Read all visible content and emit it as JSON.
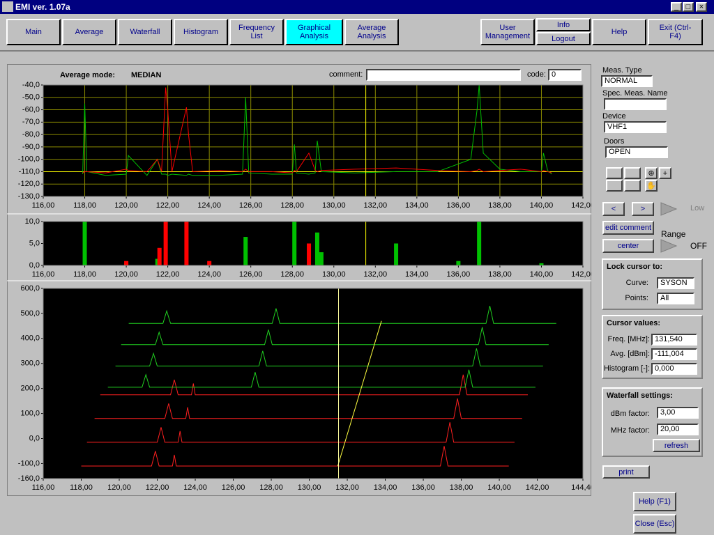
{
  "window": {
    "title": "EMI ver. 1.07a"
  },
  "menu": [
    "Main",
    "Average",
    "Waterfall",
    "Histogram",
    "Frequency List",
    "Graphical Analysis",
    "Average Analysis",
    "User Management",
    "Info",
    "Logout",
    "Help",
    "Exit (Ctrl-F4)"
  ],
  "header": {
    "mode_label": "Average mode:",
    "mode": "MEDIAN",
    "comment_label": "comment:",
    "code_label": "code:",
    "code": "0"
  },
  "side": {
    "meas_type_label": "Meas. Type",
    "meas_type": "NORMAL",
    "spec_name_label": "Spec. Meas. Name",
    "device_label": "Device",
    "device": "VHF1",
    "doors_label": "Doors",
    "doors": "OPEN",
    "prev": "<",
    "next": ">",
    "low": "Low",
    "edit_comment": "edit comment",
    "range": "Range",
    "center": "center",
    "off": "OFF",
    "lock": {
      "title": "Lock cursor to:",
      "curve_label": "Curve:",
      "curve": "SYSON",
      "points_label": "Points:",
      "points": "All"
    },
    "cursor": {
      "title": "Cursor values:",
      "freq_label": "Freq. [MHz]:",
      "freq": "131,540",
      "avg_label": "Avg. [dBm]:",
      "avg": "-111,004",
      "hist_label": "Histogram [-]:",
      "hist": "0,000"
    },
    "waterfall": {
      "title": "Waterfall settings:",
      "dbm_label": "dBm factor:",
      "dbm": "3,00",
      "mhz_label": "MHz factor:",
      "mhz": "20,00",
      "refresh": "refresh"
    },
    "print": "print",
    "help": "Help (F1)",
    "close": "Close (Esc)"
  },
  "chart_data": [
    {
      "type": "line",
      "background": "#000000",
      "grid": true,
      "grid_color": "#8a8a00",
      "xlim": [
        116,
        142
      ],
      "ylim": [
        -130,
        -40
      ],
      "xticks": [
        {
          "value": 116,
          "label": "116,00"
        },
        {
          "value": 118,
          "label": "118,00"
        },
        {
          "value": 120,
          "label": "120,00"
        },
        {
          "value": 122,
          "label": "122,00"
        },
        {
          "value": 124,
          "label": "124,00"
        },
        {
          "value": 126,
          "label": "126,00"
        },
        {
          "value": 128,
          "label": "128,00"
        },
        {
          "value": 130,
          "label": "130,00"
        },
        {
          "value": 132,
          "label": "132,00"
        },
        {
          "value": 134,
          "label": "134,00"
        },
        {
          "value": 136,
          "label": "136,00"
        },
        {
          "value": 138,
          "label": "138,00"
        },
        {
          "value": 140,
          "label": "140,00"
        },
        {
          "value": 142,
          "label": "142,00"
        }
      ],
      "yticks": [
        {
          "value": -130,
          "label": "-130,0"
        },
        {
          "value": -120,
          "label": "-120,0"
        },
        {
          "value": -110,
          "label": "-110,0"
        },
        {
          "value": -100,
          "label": "-100,0"
        },
        {
          "value": -90,
          "label": "-90,0"
        },
        {
          "value": -80,
          "label": "-80,0"
        },
        {
          "value": -70,
          "label": "-70,0"
        },
        {
          "value": -60,
          "label": "-60,0"
        },
        {
          "value": -50,
          "label": "-50,0"
        },
        {
          "value": -40,
          "label": "-40,0"
        }
      ],
      "reference_lines": [
        -110
      ],
      "reference_color": "#ffff00",
      "cursor": 131.54,
      "cursor_color": "#ffff00",
      "x": [
        117.9,
        118.0,
        118.1,
        119.0,
        120.0,
        120.1,
        121.0,
        121.5,
        121.7,
        121.9,
        122.0,
        122.2,
        122.9,
        123.0,
        123.2,
        124.5,
        125.6,
        125.75,
        125.9,
        127.0,
        128.0,
        128.1,
        128.2,
        128.8,
        129.1,
        129.2,
        129.4,
        131.0,
        133.0,
        135.0,
        136.6,
        136.9,
        137.0,
        137.2,
        138.0,
        139.0,
        140.0,
        140.1,
        140.3,
        140.5
      ],
      "series": [
        {
          "color": "#00c000",
          "values": [
            -112,
            -55,
            -110,
            -113,
            -112,
            -97,
            -113,
            -100,
            -112,
            -112,
            -113,
            -112,
            -113,
            -112,
            -113,
            -113,
            -112,
            -50,
            -111,
            -112,
            -112,
            -88,
            -111,
            -112,
            -111,
            -85,
            -110,
            -111,
            -110,
            -110,
            -100,
            -60,
            -40,
            -95,
            -108,
            -110,
            -110,
            -95,
            -109,
            -112
          ]
        },
        {
          "color": "#ff0000",
          "values": [
            -111,
            -110,
            -110,
            -111,
            -108,
            -109,
            -110,
            -100,
            -110,
            -42,
            -60,
            -110,
            -58,
            -80,
            -110,
            -109,
            -110,
            -108,
            -110,
            -110,
            -111,
            -109,
            -110,
            -95,
            -109,
            -110,
            -109,
            -108,
            -107,
            -109,
            -110,
            -109,
            -108,
            -110,
            -109,
            -108,
            -110,
            -109,
            -110,
            -111
          ]
        }
      ]
    },
    {
      "type": "bar",
      "background": "#000000",
      "grid": false,
      "xlim": [
        116,
        142
      ],
      "ylim": [
        0,
        10
      ],
      "xticks": [
        {
          "value": 116,
          "label": "116,00"
        },
        {
          "value": 118,
          "label": "118,00"
        },
        {
          "value": 120,
          "label": "120,00"
        },
        {
          "value": 122,
          "label": "122,00"
        },
        {
          "value": 124,
          "label": "124,00"
        },
        {
          "value": 126,
          "label": "126,00"
        },
        {
          "value": 128,
          "label": "128,00"
        },
        {
          "value": 130,
          "label": "130,00"
        },
        {
          "value": 132,
          "label": "132,00"
        },
        {
          "value": 134,
          "label": "134,00"
        },
        {
          "value": 136,
          "label": "136,00"
        },
        {
          "value": 138,
          "label": "138,00"
        },
        {
          "value": 140,
          "label": "140,00"
        },
        {
          "value": 142,
          "label": "142,00"
        }
      ],
      "yticks": [
        {
          "value": 0,
          "label": "0,0"
        },
        {
          "value": 5,
          "label": "5,0"
        },
        {
          "value": 10,
          "label": "10,0"
        }
      ],
      "cursor": 131.54,
      "cursor_color": "#ffff00",
      "series": [
        {
          "color": "#00c000",
          "x": [
            118.0,
            120.0,
            121.5,
            125.75,
            128.1,
            129.2,
            129.4,
            133.0,
            136.0,
            137.0,
            140.0
          ],
          "values": [
            10,
            0.5,
            1.5,
            6.5,
            10,
            7.5,
            3,
            5,
            1,
            10,
            0.5
          ]
        },
        {
          "color": "#ff0000",
          "x": [
            120.0,
            121.6,
            121.9,
            122.9,
            124.0,
            128.8
          ],
          "values": [
            1,
            4,
            10,
            10,
            1,
            5
          ]
        }
      ]
    },
    {
      "type": "line",
      "background": "#000000",
      "grid": false,
      "xlim": [
        116,
        144.4
      ],
      "ylim": [
        -160,
        600
      ],
      "xticks": [
        {
          "value": 116,
          "label": "116,00"
        },
        {
          "value": 118,
          "label": "118,00"
        },
        {
          "value": 120,
          "label": "120,00"
        },
        {
          "value": 122,
          "label": "122,00"
        },
        {
          "value": 124,
          "label": "124,00"
        },
        {
          "value": 126,
          "label": "126,00"
        },
        {
          "value": 128,
          "label": "128,00"
        },
        {
          "value": 130,
          "label": "130,00"
        },
        {
          "value": 132,
          "label": "132,00"
        },
        {
          "value": 134,
          "label": "134,00"
        },
        {
          "value": 136,
          "label": "136,00"
        },
        {
          "value": 138,
          "label": "138,00"
        },
        {
          "value": 140,
          "label": "140,00"
        },
        {
          "value": 142,
          "label": "142,00"
        },
        {
          "value": 144.4,
          "label": "144,40"
        }
      ],
      "yticks": [
        {
          "value": -160,
          "label": "-160,0"
        },
        {
          "value": -100,
          "label": "-100,0"
        },
        {
          "value": 0,
          "label": "0,0"
        },
        {
          "value": 100,
          "label": "100,0"
        },
        {
          "value": 200,
          "label": "200,0"
        },
        {
          "value": 300,
          "label": "300,0"
        },
        {
          "value": 400,
          "label": "400,0"
        },
        {
          "value": 500,
          "label": "500,0"
        },
        {
          "value": 600,
          "label": "600,0"
        }
      ],
      "cursor": 131.54,
      "cursor_color": "#ffffa0",
      "series": [
        {
          "color": "#ff2020",
          "x": [
            118,
            121.7,
            121.9,
            122.1,
            122.8,
            122.9,
            123,
            136.9,
            137.1,
            137.3,
            140.5
          ],
          "values": [
            -110,
            -110,
            -50,
            -110,
            -110,
            -65,
            -110,
            -110,
            -30,
            -110,
            -110
          ]
        },
        {
          "color": "#ff2020",
          "x": [
            118.3,
            122,
            122.2,
            122.4,
            123.1,
            123.2,
            123.3,
            137.2,
            137.4,
            137.6,
            140.8
          ],
          "values": [
            -15,
            -15,
            45,
            -15,
            -15,
            30,
            -15,
            -15,
            65,
            -15,
            -15
          ]
        },
        {
          "color": "#ff2020",
          "x": [
            118.7,
            122.4,
            122.6,
            122.8,
            123.5,
            123.6,
            123.7,
            137.6,
            137.8,
            138,
            141.2
          ],
          "values": [
            80,
            80,
            140,
            80,
            80,
            125,
            80,
            80,
            160,
            80,
            80
          ]
        },
        {
          "color": "#ff2020",
          "x": [
            119,
            122.7,
            122.9,
            123.1,
            123.8,
            123.9,
            124,
            137.9,
            138.1,
            138.3,
            141.5
          ],
          "values": [
            175,
            175,
            235,
            175,
            175,
            220,
            175,
            175,
            255,
            175,
            175
          ]
        },
        {
          "color": "#20d020",
          "x": [
            119.4,
            121.2,
            121.4,
            121.6,
            126.95,
            127.15,
            127.35,
            138.2,
            138.4,
            138.6,
            141.9
          ],
          "values": [
            205,
            205,
            255,
            205,
            205,
            265,
            205,
            205,
            275,
            205,
            205
          ]
        },
        {
          "color": "#20d020",
          "x": [
            119.8,
            121.6,
            121.8,
            122,
            127.35,
            127.55,
            127.75,
            138.6,
            138.8,
            139,
            142.3
          ],
          "values": [
            290,
            290,
            340,
            290,
            290,
            350,
            290,
            290,
            360,
            290,
            290
          ]
        },
        {
          "color": "#20d020",
          "x": [
            120.1,
            121.9,
            122.1,
            122.3,
            127.65,
            127.85,
            128.05,
            138.9,
            139.1,
            139.3,
            142.6
          ],
          "values": [
            375,
            375,
            425,
            375,
            375,
            435,
            375,
            375,
            445,
            375,
            375
          ]
        },
        {
          "color": "#20d020",
          "x": [
            120.5,
            122.3,
            122.5,
            122.7,
            128.05,
            128.25,
            128.45,
            139.3,
            139.5,
            139.7,
            143
          ],
          "values": [
            460,
            460,
            510,
            460,
            460,
            520,
            460,
            460,
            530,
            460,
            460
          ]
        },
        {
          "color": "#ffff40",
          "x": [
            131.5,
            133.8
          ],
          "values": [
            -110,
            470
          ]
        }
      ]
    }
  ]
}
